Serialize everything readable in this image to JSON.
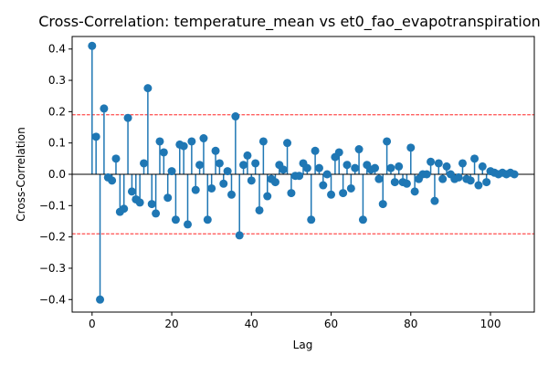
{
  "chart_data": {
    "type": "stem",
    "title": "Cross-Correlation: temperature_mean vs et0_fao_evapotranspiration",
    "xlabel": "Lag",
    "ylabel": "Cross-Correlation",
    "xlim": [
      -5,
      111
    ],
    "ylim": [
      -0.44,
      0.44
    ],
    "xticks": [
      0,
      20,
      40,
      60,
      80,
      100
    ],
    "yticks": [
      -0.4,
      -0.3,
      -0.2,
      -0.1,
      0.0,
      0.1,
      0.2,
      0.3,
      0.4
    ],
    "ytick_labels": [
      "−0.4",
      "−0.3",
      "−0.2",
      "−0.1",
      "0.0",
      "0.1",
      "0.2",
      "0.3",
      "0.4"
    ],
    "confidence_band": [
      -0.19,
      0.19
    ],
    "colors": {
      "stem": "#1f77b4",
      "confidence": "#ff0000",
      "baseline": "#000000"
    },
    "grid": false,
    "lags": [
      0,
      1,
      2,
      3,
      4,
      5,
      6,
      7,
      8,
      9,
      10,
      11,
      12,
      13,
      14,
      15,
      16,
      17,
      18,
      19,
      20,
      21,
      22,
      23,
      24,
      25,
      26,
      27,
      28,
      29,
      30,
      31,
      32,
      33,
      34,
      35,
      36,
      37,
      38,
      39,
      40,
      41,
      42,
      43,
      44,
      45,
      46,
      47,
      48,
      49,
      50,
      51,
      52,
      53,
      54,
      55,
      56,
      57,
      58,
      59,
      60,
      61,
      62,
      63,
      64,
      65,
      66,
      67,
      68,
      69,
      70,
      71,
      72,
      73,
      74,
      75,
      76,
      77,
      78,
      79,
      80,
      81,
      82,
      83,
      84,
      85,
      86,
      87,
      88,
      89,
      90,
      91,
      92,
      93,
      94,
      95,
      96,
      97,
      98,
      99,
      100,
      101,
      102,
      103,
      104,
      105,
      106
    ],
    "values": [
      0.41,
      0.12,
      -0.4,
      0.21,
      -0.01,
      -0.02,
      0.05,
      -0.12,
      -0.11,
      0.18,
      -0.055,
      -0.08,
      -0.09,
      0.035,
      0.275,
      -0.095,
      -0.125,
      0.105,
      0.07,
      -0.075,
      0.01,
      -0.145,
      0.095,
      0.09,
      -0.16,
      0.105,
      -0.05,
      0.03,
      0.115,
      -0.145,
      -0.045,
      0.075,
      0.035,
      -0.03,
      0.01,
      -0.065,
      0.185,
      -0.195,
      0.03,
      0.06,
      -0.02,
      0.035,
      -0.115,
      0.105,
      -0.07,
      -0.015,
      -0.025,
      0.03,
      0.015,
      0.1,
      -0.06,
      -0.005,
      -0.005,
      0.035,
      0.02,
      -0.145,
      0.075,
      0.02,
      -0.035,
      0.0,
      -0.065,
      0.055,
      0.07,
      -0.06,
      0.03,
      -0.045,
      0.02,
      0.08,
      -0.145,
      0.03,
      0.015,
      0.02,
      -0.015,
      -0.095,
      0.105,
      0.02,
      -0.025,
      0.025,
      -0.025,
      -0.03,
      0.085,
      -0.055,
      -0.015,
      0.0,
      0.0,
      0.04,
      -0.085,
      0.035,
      -0.015,
      0.025,
      0.0,
      -0.015,
      -0.01,
      0.035,
      -0.015,
      -0.02,
      0.05,
      -0.035,
      0.025,
      -0.025,
      0.01,
      0.005,
      0.0,
      0.005,
      0.0,
      0.005,
      0.0
    ]
  }
}
